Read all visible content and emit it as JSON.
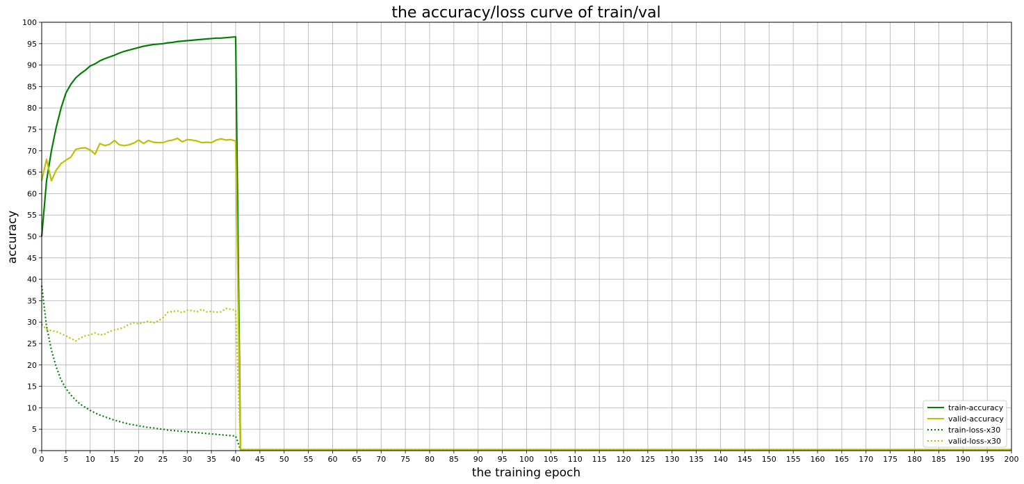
{
  "chart_data": {
    "type": "line",
    "title": "the accuracy/loss curve of train/val",
    "xlabel": "the training epoch",
    "ylabel": "accuracy",
    "xlim": [
      0,
      200
    ],
    "ylim": [
      0,
      100
    ],
    "xticks": [
      0,
      5,
      10,
      15,
      20,
      25,
      30,
      35,
      40,
      45,
      50,
      55,
      60,
      65,
      70,
      75,
      80,
      85,
      90,
      95,
      100,
      105,
      110,
      115,
      120,
      125,
      130,
      135,
      140,
      145,
      150,
      155,
      160,
      165,
      170,
      175,
      180,
      185,
      190,
      195,
      200
    ],
    "yticks": [
      0,
      5,
      10,
      15,
      20,
      25,
      30,
      35,
      40,
      45,
      50,
      55,
      60,
      65,
      70,
      75,
      80,
      85,
      90,
      95,
      100
    ],
    "grid": true,
    "legend_position": "bottom-right",
    "series": [
      {
        "name": "train-accuracy",
        "color": "#008000",
        "style": "solid",
        "x": [
          0,
          1,
          2,
          3,
          4,
          5,
          6,
          7,
          8,
          9,
          10,
          11,
          12,
          13,
          14,
          15,
          16,
          17,
          18,
          19,
          20,
          21,
          22,
          23,
          24,
          25,
          26,
          27,
          28,
          29,
          30,
          31,
          32,
          33,
          34,
          35,
          36,
          37,
          38,
          39,
          40,
          41,
          200
        ],
        "y": [
          50.0,
          63.0,
          70.0,
          75.5,
          80.0,
          83.5,
          85.5,
          87.0,
          88.0,
          88.8,
          89.8,
          90.3,
          91.0,
          91.5,
          91.9,
          92.3,
          92.8,
          93.2,
          93.5,
          93.8,
          94.1,
          94.4,
          94.6,
          94.8,
          94.9,
          95.0,
          95.2,
          95.3,
          95.5,
          95.6,
          95.7,
          95.8,
          95.9,
          96.0,
          96.1,
          96.2,
          96.3,
          96.3,
          96.4,
          96.5,
          96.6,
          0.2,
          0.2
        ]
      },
      {
        "name": "valid-accuracy",
        "color": "#bfbf00",
        "style": "solid",
        "x": [
          0,
          1,
          2,
          3,
          4,
          5,
          6,
          7,
          8,
          9,
          10,
          11,
          12,
          13,
          14,
          15,
          16,
          17,
          18,
          19,
          20,
          21,
          22,
          23,
          24,
          25,
          26,
          27,
          28,
          29,
          30,
          31,
          32,
          33,
          34,
          35,
          36,
          37,
          38,
          39,
          40,
          41,
          200
        ],
        "y": [
          63.0,
          68.0,
          63.0,
          65.5,
          67.0,
          67.8,
          68.5,
          70.3,
          70.6,
          70.7,
          70.2,
          69.2,
          71.7,
          71.2,
          71.5,
          72.4,
          71.4,
          71.2,
          71.4,
          71.8,
          72.5,
          71.7,
          72.4,
          72.0,
          71.9,
          71.9,
          72.3,
          72.5,
          72.9,
          72.1,
          72.6,
          72.5,
          72.3,
          71.9,
          72.0,
          71.9,
          72.5,
          72.8,
          72.5,
          72.6,
          72.3,
          0.2,
          0.2
        ]
      },
      {
        "name": "train-loss-x30",
        "color": "#008000",
        "style": "dotted",
        "x": [
          0,
          1,
          2,
          3,
          4,
          5,
          6,
          7,
          8,
          9,
          10,
          11,
          12,
          13,
          14,
          15,
          16,
          17,
          18,
          19,
          20,
          21,
          22,
          23,
          24,
          25,
          26,
          27,
          28,
          29,
          30,
          31,
          32,
          33,
          34,
          35,
          36,
          37,
          38,
          39,
          40,
          41,
          200
        ],
        "y": [
          38.5,
          29.0,
          23.5,
          19.5,
          16.5,
          14.5,
          13.0,
          11.8,
          10.8,
          10.1,
          9.4,
          8.8,
          8.3,
          7.9,
          7.5,
          7.1,
          6.8,
          6.5,
          6.2,
          6.0,
          5.8,
          5.6,
          5.4,
          5.3,
          5.1,
          5.0,
          4.8,
          4.7,
          4.6,
          4.5,
          4.4,
          4.3,
          4.2,
          4.1,
          4.0,
          3.9,
          3.8,
          3.7,
          3.6,
          3.5,
          3.4,
          0.2,
          0.2
        ]
      },
      {
        "name": "valid-loss-x30",
        "color": "#bfbf00",
        "style": "dotted",
        "x": [
          0,
          1,
          2,
          3,
          4,
          5,
          6,
          7,
          8,
          9,
          10,
          11,
          12,
          13,
          14,
          15,
          16,
          17,
          18,
          19,
          20,
          21,
          22,
          23,
          24,
          25,
          26,
          27,
          28,
          29,
          30,
          31,
          32,
          33,
          34,
          35,
          36,
          37,
          38,
          39,
          40,
          41,
          200
        ],
        "y": [
          29.5,
          28.3,
          28.0,
          27.8,
          27.3,
          26.8,
          26.2,
          25.6,
          26.3,
          26.8,
          27.0,
          27.5,
          27.0,
          27.2,
          27.8,
          28.2,
          28.4,
          28.8,
          29.5,
          29.8,
          29.6,
          29.9,
          30.2,
          29.8,
          30.3,
          31.0,
          32.3,
          32.5,
          32.6,
          32.2,
          32.8,
          32.7,
          32.4,
          33.0,
          32.4,
          32.5,
          32.3,
          32.4,
          33.2,
          33.0,
          32.8,
          0.2,
          0.2
        ]
      }
    ]
  }
}
